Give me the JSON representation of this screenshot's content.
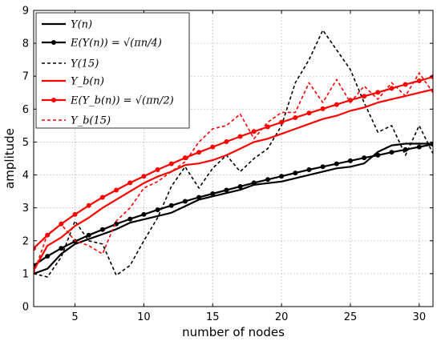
{
  "chart_data": {
    "type": "line",
    "xlabel": "number of nodes",
    "ylabel": "amplitude",
    "xlim": [
      2,
      31
    ],
    "ylim": [
      0,
      9
    ],
    "xticks": [
      5,
      10,
      15,
      20,
      25,
      30
    ],
    "yticks": [
      0,
      1,
      2,
      3,
      4,
      5,
      6,
      7,
      8,
      9
    ],
    "grid": true,
    "legend_position": "top-left",
    "series": [
      {
        "name": "Y(n)",
        "color": "#000000",
        "style": "solid",
        "marker": "none",
        "x": [
          2,
          3,
          4,
          5,
          6,
          7,
          8,
          9,
          10,
          11,
          12,
          13,
          14,
          15,
          16,
          17,
          18,
          19,
          20,
          21,
          22,
          23,
          24,
          25,
          26,
          27,
          28,
          29,
          30,
          31
        ],
        "y": [
          1.0,
          1.15,
          1.6,
          1.9,
          2.05,
          2.2,
          2.35,
          2.55,
          2.65,
          2.75,
          2.85,
          3.05,
          3.25,
          3.35,
          3.45,
          3.55,
          3.7,
          3.75,
          3.8,
          3.9,
          4.0,
          4.1,
          4.2,
          4.25,
          4.35,
          4.7,
          4.9,
          4.95,
          4.95,
          4.95
        ]
      },
      {
        "name": "E(Y(n)) = √(πn/4)",
        "color": "#000000",
        "style": "solid",
        "marker": "circle",
        "x": [
          2,
          3,
          4,
          5,
          6,
          7,
          8,
          9,
          10,
          11,
          12,
          13,
          14,
          15,
          16,
          17,
          18,
          19,
          20,
          21,
          22,
          23,
          24,
          25,
          26,
          27,
          28,
          29,
          30,
          31
        ],
        "y": [
          1.25,
          1.53,
          1.77,
          1.98,
          2.17,
          2.34,
          2.51,
          2.66,
          2.8,
          2.94,
          3.07,
          3.2,
          3.32,
          3.43,
          3.54,
          3.65,
          3.76,
          3.86,
          3.96,
          4.06,
          4.16,
          4.25,
          4.34,
          4.43,
          4.52,
          4.6,
          4.69,
          4.77,
          4.85,
          4.93
        ]
      },
      {
        "name": "Y(15)",
        "color": "#000000",
        "style": "dashed",
        "marker": "none",
        "x": [
          2,
          3,
          4,
          5,
          6,
          7,
          8,
          9,
          10,
          11,
          12,
          13,
          14,
          15,
          16,
          17,
          18,
          19,
          20,
          21,
          22,
          23,
          24,
          25,
          26,
          27,
          28,
          29,
          30,
          31
        ],
        "y": [
          1.0,
          0.9,
          1.5,
          2.6,
          2.0,
          1.9,
          0.95,
          1.25,
          2.0,
          2.7,
          3.65,
          4.25,
          3.6,
          4.2,
          4.6,
          4.1,
          4.5,
          4.8,
          5.5,
          6.8,
          7.5,
          8.4,
          7.8,
          7.2,
          6.2,
          5.3,
          5.5,
          4.6,
          5.5,
          4.65
        ]
      },
      {
        "name": "Y_b(n)",
        "color": "#ff0000",
        "style": "solid",
        "marker": "none",
        "x": [
          2,
          3,
          4,
          5,
          6,
          7,
          8,
          9,
          10,
          11,
          12,
          13,
          14,
          15,
          16,
          17,
          18,
          19,
          20,
          21,
          22,
          23,
          24,
          25,
          26,
          27,
          28,
          29,
          30,
          31
        ],
        "y": [
          1.1,
          1.85,
          2.1,
          2.45,
          2.7,
          3.0,
          3.25,
          3.5,
          3.75,
          3.95,
          4.1,
          4.3,
          4.35,
          4.45,
          4.6,
          4.8,
          5.0,
          5.1,
          5.25,
          5.4,
          5.55,
          5.7,
          5.8,
          5.95,
          6.05,
          6.2,
          6.3,
          6.4,
          6.5,
          6.6
        ]
      },
      {
        "name": "E(Y_b(n)) = √(πn/2)",
        "color": "#ff0000",
        "style": "solid",
        "marker": "circle",
        "x": [
          2,
          3,
          4,
          5,
          6,
          7,
          8,
          9,
          10,
          11,
          12,
          13,
          14,
          15,
          16,
          17,
          18,
          19,
          20,
          21,
          22,
          23,
          24,
          25,
          26,
          27,
          28,
          29,
          30,
          31
        ],
        "y": [
          1.77,
          2.17,
          2.51,
          2.8,
          3.07,
          3.32,
          3.54,
          3.76,
          3.96,
          4.16,
          4.34,
          4.52,
          4.69,
          4.85,
          5.01,
          5.17,
          5.32,
          5.46,
          5.6,
          5.74,
          5.88,
          6.01,
          6.14,
          6.27,
          6.39,
          6.51,
          6.63,
          6.75,
          6.86,
          6.98
        ]
      },
      {
        "name": "Y_b(15)",
        "color": "#ff0000",
        "style": "dashed",
        "marker": "none",
        "x": [
          2,
          3,
          4,
          5,
          6,
          7,
          8,
          9,
          10,
          11,
          12,
          13,
          14,
          15,
          16,
          17,
          18,
          19,
          20,
          21,
          22,
          23,
          24,
          25,
          26,
          27,
          28,
          29,
          30,
          31
        ],
        "y": [
          1.0,
          2.2,
          2.5,
          2.0,
          1.85,
          1.6,
          2.6,
          3.0,
          3.6,
          3.8,
          4.1,
          4.4,
          5.0,
          5.4,
          5.5,
          5.85,
          5.1,
          5.6,
          5.9,
          5.9,
          6.8,
          6.2,
          6.9,
          6.2,
          6.7,
          6.3,
          6.8,
          6.4,
          7.1,
          6.5
        ]
      }
    ]
  }
}
